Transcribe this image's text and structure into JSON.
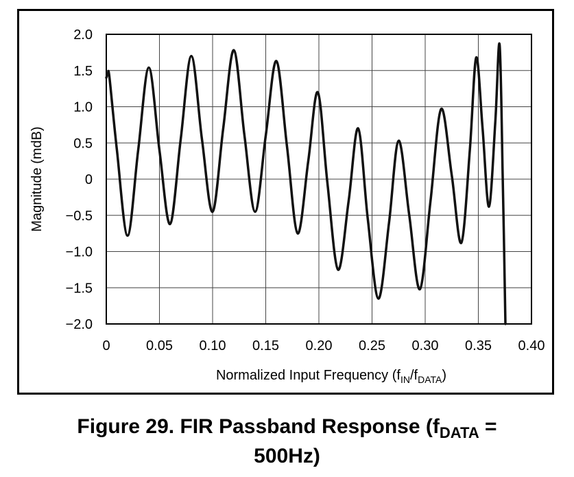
{
  "chart_data": {
    "type": "line",
    "title": "",
    "xlabel": {
      "main": "Normalized Input Frequency (f",
      "sub1": "IN",
      "mid": "/f",
      "sub2": "DATA",
      "end": ")"
    },
    "ylabel": "Magnitude (mdB)",
    "xlim": [
      0,
      0.4
    ],
    "ylim": [
      -2.0,
      2.0
    ],
    "x_ticks": [
      0,
      0.05,
      0.1,
      0.15,
      0.2,
      0.25,
      0.3,
      0.35,
      0.4
    ],
    "x_tick_labels": [
      "0",
      "0.05",
      "0.10",
      "0.15",
      "0.20",
      "0.25",
      "0.30",
      "0.35",
      "0.40"
    ],
    "y_ticks": [
      2.0,
      1.5,
      1.0,
      0.5,
      0,
      -0.5,
      -1.0,
      -1.5,
      -2.0
    ],
    "y_tick_labels": [
      "2.0",
      "1.5",
      "1.0",
      "0.5",
      "0",
      "−0.5",
      "−1.0",
      "−1.5",
      "−2.0"
    ],
    "grid": true,
    "legend": "none",
    "line_color": "#111111",
    "series": [
      {
        "x": [
          0.0,
          0.0015,
          0.003,
          0.01,
          0.02,
          0.03,
          0.04,
          0.05,
          0.06,
          0.07,
          0.08,
          0.09,
          0.1,
          0.11,
          0.12,
          0.13,
          0.14,
          0.15,
          0.16,
          0.17,
          0.18,
          0.19,
          0.199,
          0.208,
          0.218,
          0.228,
          0.237,
          0.246,
          0.256,
          0.266,
          0.275,
          0.285,
          0.295,
          0.305,
          0.315,
          0.325,
          0.334,
          0.342,
          0.348,
          0.354,
          0.36,
          0.366,
          0.37,
          0.373,
          0.3755
        ],
        "y": [
          1.4,
          1.45,
          1.4,
          0.4,
          -0.78,
          0.4,
          1.54,
          0.4,
          -0.62,
          0.55,
          1.7,
          0.55,
          -0.45,
          0.7,
          1.78,
          0.6,
          -0.45,
          0.6,
          1.63,
          0.45,
          -0.75,
          0.25,
          1.2,
          -0.05,
          -1.25,
          -0.3,
          0.7,
          -0.55,
          -1.65,
          -0.6,
          0.53,
          -0.5,
          -1.52,
          -0.3,
          0.97,
          0.05,
          -0.88,
          0.4,
          1.68,
          0.7,
          -0.38,
          0.8,
          1.86,
          0.0,
          -2.0
        ]
      }
    ]
  },
  "caption": {
    "prefix": "Figure 29.  FIR Passband Response (f",
    "sub": "DATA",
    "suffix": " =",
    "line2": "500Hz)"
  }
}
